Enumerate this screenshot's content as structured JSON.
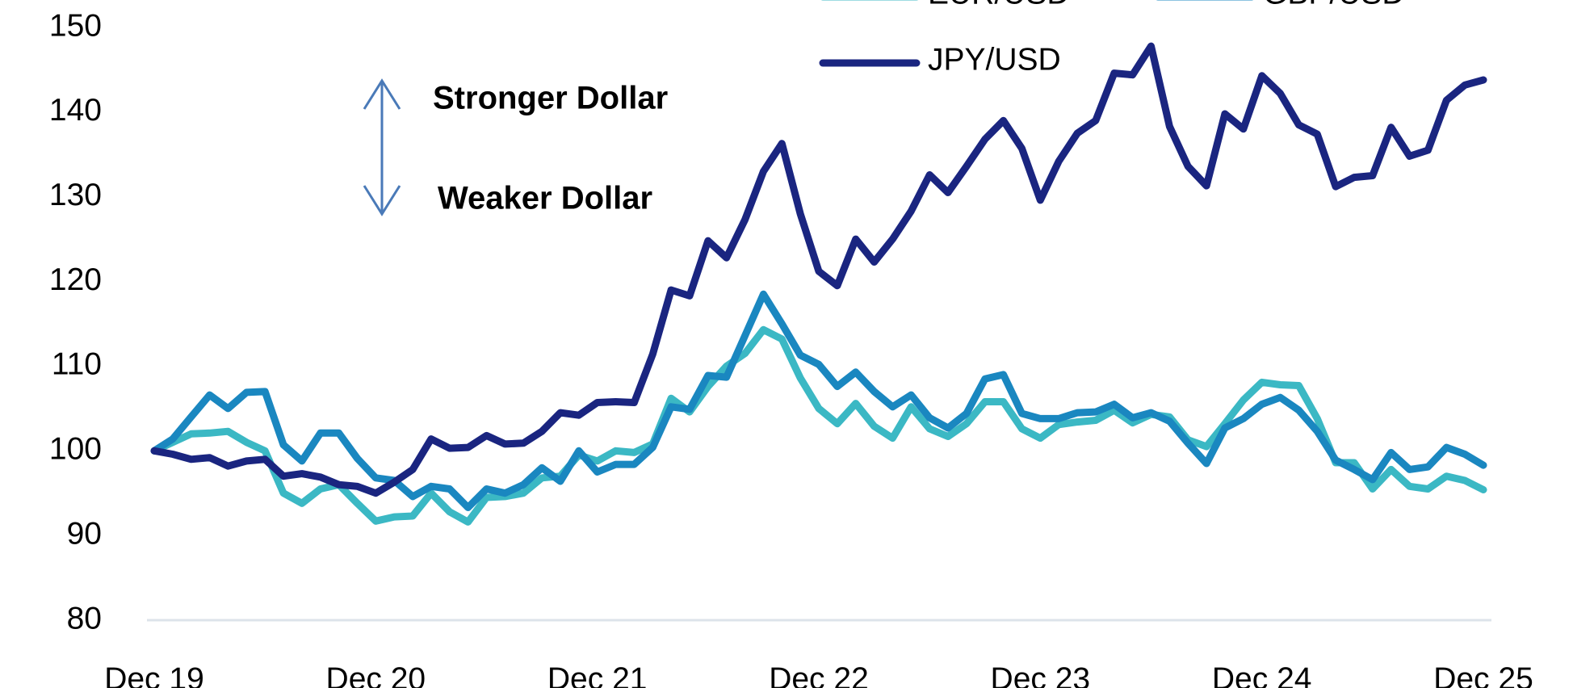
{
  "chart_data": {
    "type": "line",
    "annotations": [
      "Stronger Dollar",
      "Weaker Dollar"
    ],
    "categories": [
      "Dec 19",
      null,
      null,
      null,
      null,
      null,
      null,
      null,
      null,
      null,
      null,
      null,
      "Dec 20",
      null,
      null,
      null,
      null,
      null,
      null,
      null,
      null,
      null,
      null,
      null,
      "Dec 21",
      null,
      null,
      null,
      null,
      null,
      null,
      null,
      null,
      null,
      null,
      null,
      "Dec 22",
      null,
      null,
      null,
      null,
      null,
      null,
      null,
      null,
      null,
      null,
      null,
      "Dec 23",
      null,
      null,
      null,
      null,
      null,
      null,
      null,
      null,
      null,
      null,
      null,
      "Dec 24",
      null,
      null,
      null,
      null,
      null,
      null,
      null,
      null,
      null,
      null,
      null,
      "Dec 25"
    ],
    "series": [
      {
        "name": "EUR/USD",
        "color": "#3bb8c4",
        "values": [
          100,
          101,
          102,
          102.1,
          102.3,
          101,
          100,
          95,
          93.8,
          95.5,
          96,
          93.8,
          91.7,
          92.2,
          92.3,
          95,
          92.8,
          91.6,
          94.5,
          94.6,
          95,
          96.8,
          97,
          99.5,
          98.8,
          100,
          99.8,
          100.8,
          106.2,
          104.6,
          107.6,
          110,
          111.5,
          114.3,
          113.2,
          108.6,
          105,
          103.2,
          105.6,
          102.9,
          101.5,
          105.2,
          102.6,
          101.7,
          103.2,
          105.8,
          105.8,
          102.6,
          101.5,
          103.1,
          103.4,
          103.6,
          104.8,
          103.3,
          104.3,
          104,
          101.3,
          100.5,
          103.2,
          106,
          108.1,
          107.8,
          107.7,
          103.8,
          98.6,
          98.6,
          95.5,
          97.8,
          95.8,
          95.5,
          97,
          96.5,
          95.4
        ]
      },
      {
        "name": "GBP/USD",
        "color": "#1a87c0",
        "values": [
          100,
          101.4,
          104,
          106.6,
          105,
          106.9,
          107,
          100.7,
          98.8,
          102.1,
          102.1,
          99.1,
          96.8,
          96.5,
          94.6,
          95.8,
          95.5,
          93.3,
          95.5,
          95,
          96,
          98,
          96.4,
          100,
          97.5,
          98.4,
          98.4,
          100.4,
          105.2,
          104.9,
          108.9,
          108.7,
          113.6,
          118.5,
          115,
          111.3,
          110.2,
          107.6,
          109.3,
          107,
          105.2,
          106.6,
          103.9,
          102.7,
          104.4,
          108.5,
          109,
          104.4,
          103.8,
          103.8,
          104.5,
          104.6,
          105.5,
          103.9,
          104.5,
          103.5,
          100.9,
          98.5,
          102.7,
          103.8,
          105.5,
          106.3,
          104.8,
          102.3,
          98.9,
          97.8,
          96.6,
          99.8,
          97.8,
          98.1,
          100.4,
          99.6,
          98.3
        ]
      },
      {
        "name": "JPY/USD",
        "color": "#1a2580",
        "values": [
          100,
          99.6,
          99,
          99.2,
          98.2,
          98.8,
          99,
          97,
          97.3,
          96.9,
          96,
          95.8,
          95,
          96.3,
          97.8,
          101.4,
          100.3,
          100.4,
          101.8,
          100.8,
          100.9,
          102.3,
          104.5,
          104.2,
          105.7,
          105.8,
          105.7,
          111.4,
          119,
          118.3,
          124.8,
          122.8,
          127.3,
          133,
          136.3,
          128,
          121.2,
          119.5,
          125,
          122.3,
          125,
          128.3,
          132.6,
          130.5,
          133.6,
          136.8,
          139,
          135.7,
          129.6,
          134.2,
          137.5,
          139,
          144.6,
          144.4,
          147.8,
          138.3,
          133.6,
          131.3,
          139.8,
          138,
          144.3,
          142.2,
          138.5,
          137.4,
          131.2,
          132.3,
          132.5,
          138.2,
          134.8,
          135.5,
          141.4,
          143.2,
          143.8
        ]
      }
    ],
    "ylim": [
      80,
      150
    ],
    "yticks": [
      80,
      90,
      100,
      110,
      120,
      130,
      140,
      150
    ],
    "grid": false
  }
}
